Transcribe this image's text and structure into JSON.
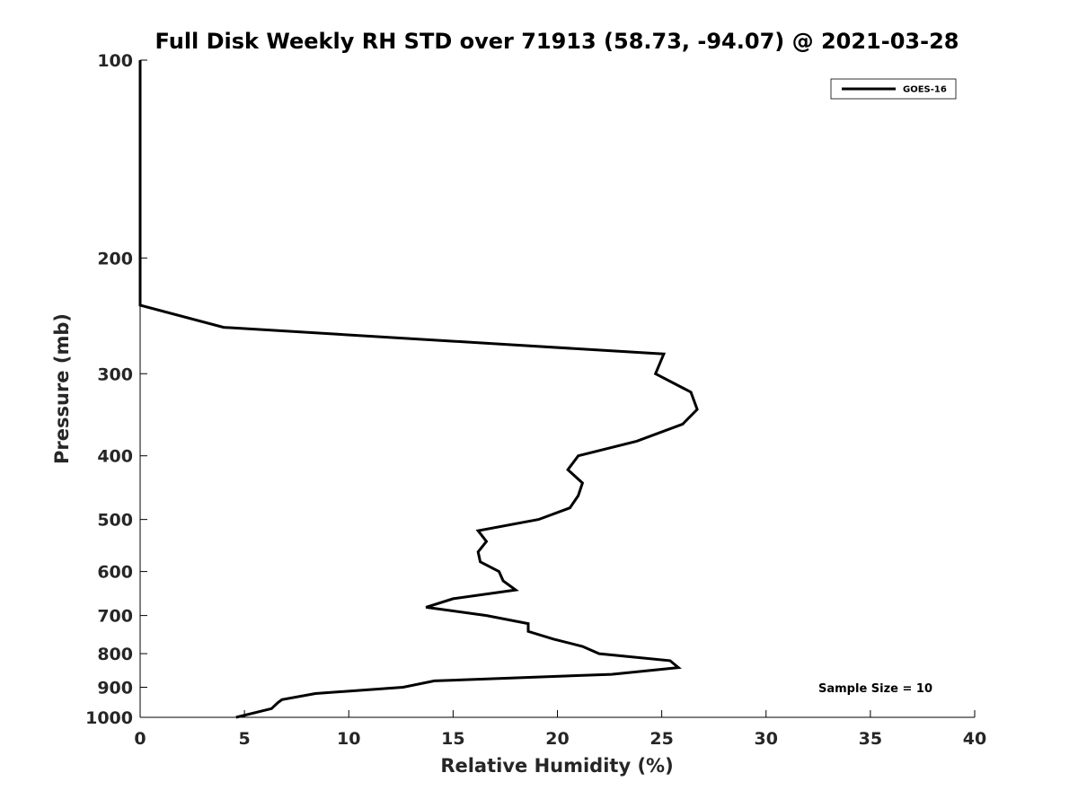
{
  "chart_data": {
    "type": "line",
    "title": "Full Disk Weekly RH STD over 71913 (58.73, -94.07) @ 2021-03-28",
    "xlabel": "Relative Humidity (%)",
    "ylabel": "Pressure (mb)",
    "xlim": [
      0,
      40
    ],
    "ylim": [
      100,
      1000
    ],
    "y_scale": "log",
    "y_reversed": true,
    "grid": false,
    "legend_position": "top-right",
    "x_ticks": [
      "0",
      "5",
      "10",
      "15",
      "20",
      "25",
      "30",
      "35",
      "40"
    ],
    "x_tick_values": [
      0,
      5,
      10,
      15,
      20,
      25,
      30,
      35,
      40
    ],
    "y_ticks": [
      "100",
      "200",
      "300",
      "400",
      "500",
      "600",
      "700",
      "800",
      "900",
      "1000"
    ],
    "y_tick_values": [
      100,
      200,
      300,
      400,
      500,
      600,
      700,
      800,
      900,
      1000
    ],
    "series": [
      {
        "name": "GOES-16",
        "color": "#000000",
        "points": [
          [
            0.0,
            100
          ],
          [
            0.0,
            150
          ],
          [
            0.0,
            200
          ],
          [
            0.0,
            236
          ],
          [
            4.0,
            255
          ],
          [
            25.1,
            280
          ],
          [
            24.7,
            300
          ],
          [
            26.4,
            320
          ],
          [
            26.7,
            340
          ],
          [
            26.0,
            358
          ],
          [
            23.8,
            380
          ],
          [
            21.0,
            400
          ],
          [
            20.5,
            420
          ],
          [
            21.2,
            440
          ],
          [
            21.0,
            460
          ],
          [
            20.6,
            480
          ],
          [
            19.1,
            500
          ],
          [
            16.2,
            520
          ],
          [
            16.6,
            540
          ],
          [
            16.2,
            560
          ],
          [
            16.3,
            580
          ],
          [
            17.2,
            600
          ],
          [
            17.4,
            620
          ],
          [
            18.0,
            640
          ],
          [
            15.0,
            660
          ],
          [
            13.7,
            680
          ],
          [
            16.6,
            700
          ],
          [
            18.6,
            720
          ],
          [
            18.6,
            740
          ],
          [
            19.8,
            760
          ],
          [
            21.2,
            780
          ],
          [
            22.0,
            800
          ],
          [
            25.4,
            820
          ],
          [
            25.8,
            840
          ],
          [
            22.6,
            860
          ],
          [
            14.1,
            880
          ],
          [
            12.6,
            900
          ],
          [
            8.4,
            920
          ],
          [
            6.8,
            940
          ],
          [
            6.6,
            950
          ],
          [
            6.3,
            970
          ],
          [
            4.6,
            1000
          ]
        ]
      }
    ],
    "annotations": [
      "Sample Size = 10"
    ]
  }
}
